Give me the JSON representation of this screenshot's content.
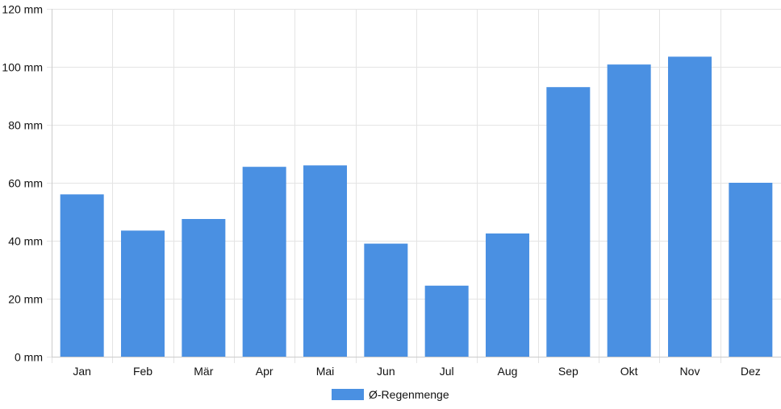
{
  "chart_data": {
    "type": "bar",
    "title": "",
    "xlabel": "",
    "ylabel": "",
    "categories": [
      "Jan",
      "Feb",
      "Mär",
      "Apr",
      "Mai",
      "Jun",
      "Jul",
      "Aug",
      "Sep",
      "Okt",
      "Nov",
      "Dez"
    ],
    "series": [
      {
        "name": "Ø-Regenmenge",
        "color": "#4a90e2",
        "values": [
          56,
          43.5,
          47.5,
          65.5,
          66,
          39,
          24.5,
          42.5,
          93,
          100.8,
          103.5,
          60
        ]
      }
    ],
    "ylim": [
      0,
      120
    ],
    "yticks": [
      "0 mm",
      "20 mm",
      "40 mm",
      "60 mm",
      "80 mm",
      "100 mm",
      "120 mm"
    ],
    "grid": true,
    "legend_position": "bottom-center"
  }
}
